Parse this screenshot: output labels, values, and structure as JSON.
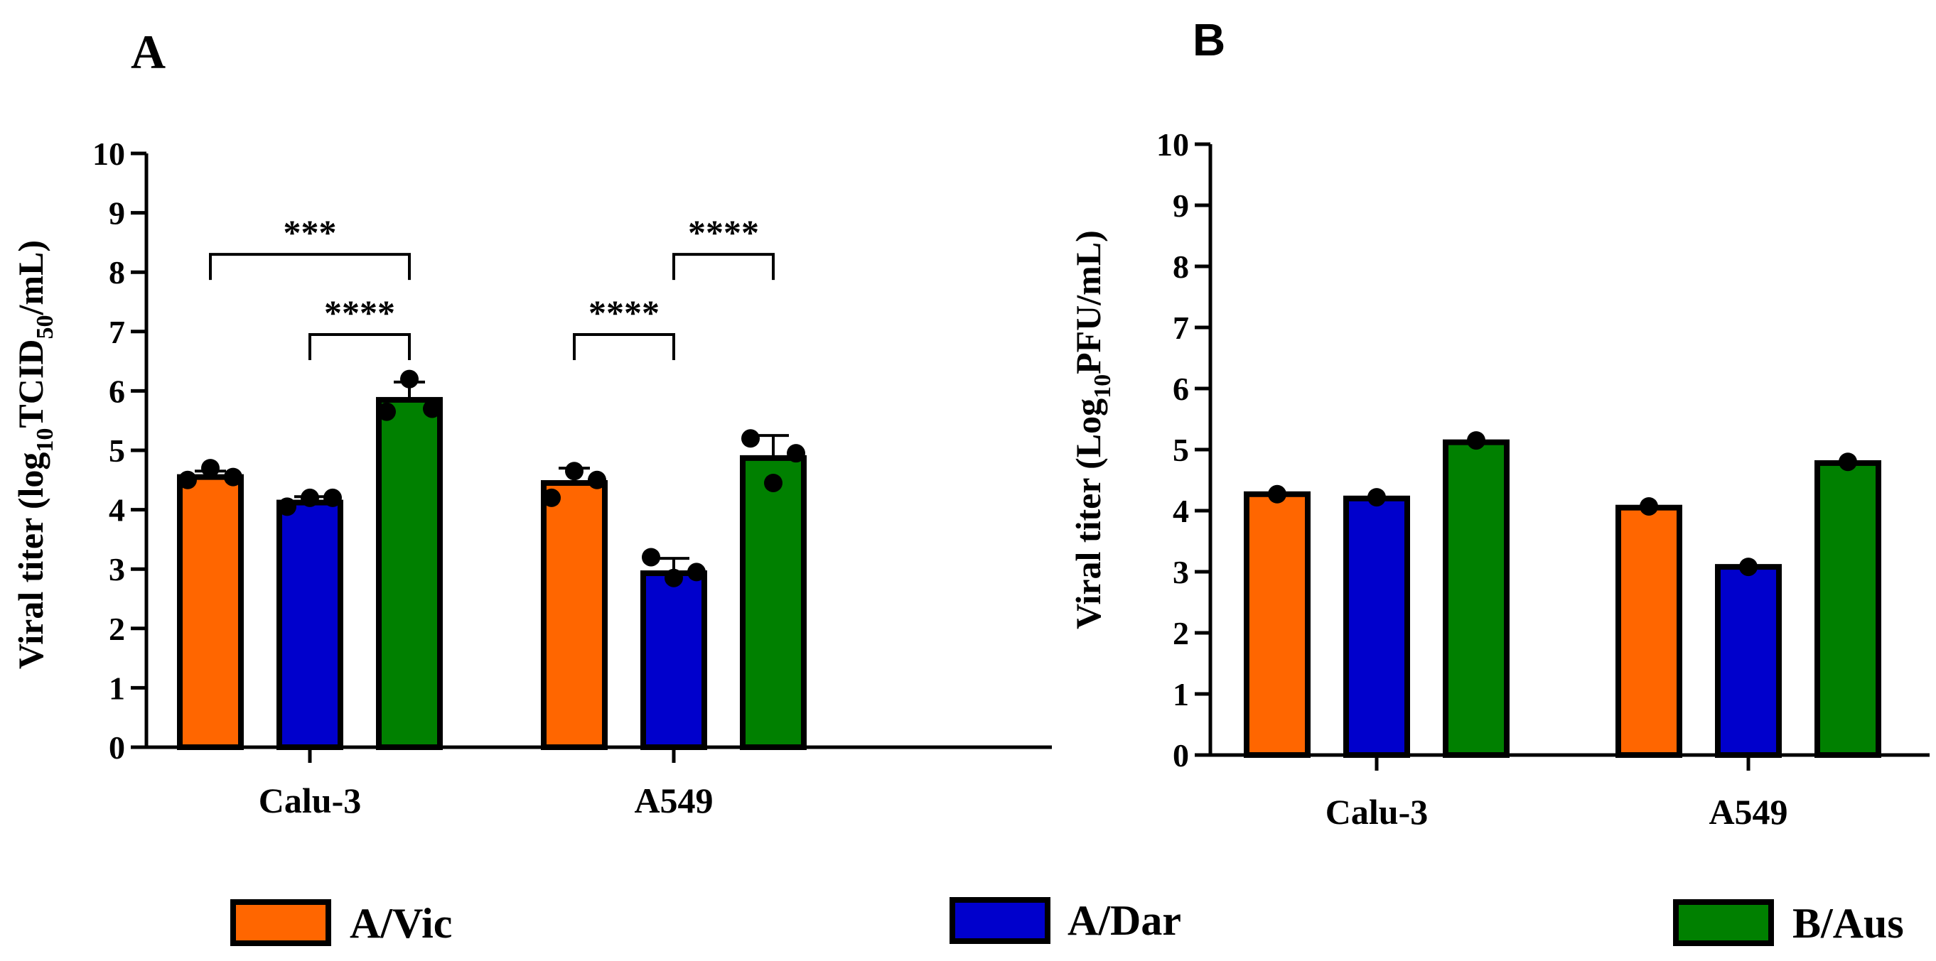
{
  "figure": {
    "colors": {
      "A/Vic": "#FF6600",
      "A/Dar": "#0000CC",
      "B/Aus": "#008000"
    },
    "legend": [
      "A/Vic",
      "A/Dar",
      "B/Aus"
    ]
  },
  "chart_data": [
    {
      "panel": "A",
      "type": "bar",
      "title": "",
      "xlabel": "",
      "ylabel_main": "Viral titer (log",
      "ylabel_sub": "10",
      "ylabel_mid": "TCID",
      "ylabel_sub2": "50",
      "ylabel_end": "/mL)",
      "ylim": [
        0,
        10
      ],
      "yticks": [
        "0",
        "1",
        "2",
        "3",
        "4",
        "5",
        "6",
        "7",
        "8",
        "9",
        "10"
      ],
      "categories": [
        "Calu-3",
        "A549"
      ],
      "series": [
        {
          "name": "A/Vic",
          "values": [
            4.55,
            4.45
          ],
          "errors": [
            0.1,
            0.25
          ],
          "points": [
            [
              4.5,
              4.7,
              4.55
            ],
            [
              4.2,
              4.65,
              4.5
            ]
          ]
        },
        {
          "name": "A/Dar",
          "values": [
            4.12,
            2.93
          ],
          "errors": [
            0.1,
            0.25
          ],
          "points": [
            [
              4.05,
              4.2,
              4.2
            ],
            [
              3.2,
              2.85,
              2.95
            ]
          ]
        },
        {
          "name": "B/Aus",
          "values": [
            5.85,
            4.87
          ],
          "errors": [
            0.3,
            0.38
          ],
          "points": [
            [
              5.65,
              6.2,
              5.7
            ],
            [
              5.2,
              4.45,
              4.95
            ]
          ]
        }
      ],
      "significance": [
        {
          "group": 0,
          "from": 0,
          "to": 2,
          "y": 8.3,
          "label": "***"
        },
        {
          "group": 0,
          "from": 1,
          "to": 2,
          "y": 6.95,
          "label": "****"
        },
        {
          "group": 1,
          "from": 0,
          "to": 1,
          "y": 6.95,
          "label": "****"
        },
        {
          "group": 1,
          "from": 1,
          "to": 2,
          "y": 8.3,
          "label": "****"
        }
      ]
    },
    {
      "panel": "B",
      "type": "bar",
      "title": "",
      "xlabel": "",
      "ylabel_main": "Viral titer (Log",
      "ylabel_sub": "10",
      "ylabel_end": "PFU/mL)",
      "ylim": [
        0,
        10
      ],
      "yticks": [
        "0",
        "1",
        "2",
        "3",
        "4",
        "5",
        "6",
        "7",
        "8",
        "9",
        "10"
      ],
      "categories": [
        "Calu-3",
        "A549"
      ],
      "series": [
        {
          "name": "A/Vic",
          "values": [
            4.27,
            4.05
          ],
          "points": [
            [
              4.27
            ],
            [
              4.07
            ]
          ]
        },
        {
          "name": "A/Dar",
          "values": [
            4.2,
            3.08
          ],
          "points": [
            [
              4.22
            ],
            [
              3.08
            ]
          ]
        },
        {
          "name": "B/Aus",
          "values": [
            5.12,
            4.78
          ],
          "points": [
            [
              5.15
            ],
            [
              4.8
            ]
          ]
        }
      ]
    }
  ]
}
